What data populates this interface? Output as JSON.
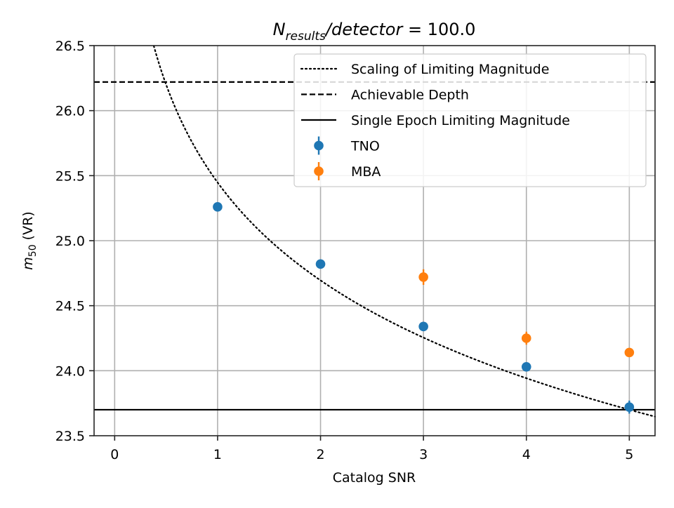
{
  "chart_data": {
    "type": "scatter",
    "title": {
      "symbol": "N",
      "subscript": "results",
      "rest": "/detector",
      "eq": " = 100.0"
    },
    "xlabel": "Catalog SNR",
    "ylabel": {
      "symbol": "m",
      "subscript": "50",
      "rest": " (VR)"
    },
    "xlim": [
      -0.2,
      5.25
    ],
    "ylim": [
      23.5,
      26.5
    ],
    "x_ticks": [
      0,
      1,
      2,
      3,
      4,
      5
    ],
    "x_tick_labels": [
      "0",
      "1",
      "2",
      "3",
      "4",
      "5"
    ],
    "y_ticks": [
      23.5,
      24.0,
      24.5,
      25.0,
      25.5,
      26.0,
      26.5
    ],
    "y_tick_labels": [
      "23.5",
      "24.0",
      "24.5",
      "25.0",
      "25.5",
      "26.0",
      "26.5"
    ],
    "grid": true,
    "legend_position": "top-right",
    "lines": [
      {
        "name": "Scaling of Limiting Magnitude",
        "style": "dotted",
        "color": "#000000",
        "formula": "23.70 + 2.5*log10(5/x)",
        "x_range": [
          0.38,
          5.25
        ]
      },
      {
        "name": "Achievable Depth",
        "style": "dashed",
        "color": "#000000",
        "y": 26.22
      },
      {
        "name": "Single Epoch Limiting Magnitude",
        "style": "solid",
        "color": "#000000",
        "y": 23.7
      }
    ],
    "series": [
      {
        "name": "TNO",
        "color": "#1f77b4",
        "x": [
          1,
          2,
          3,
          4,
          5
        ],
        "y": [
          25.26,
          24.82,
          24.34,
          24.03,
          23.72
        ],
        "yerr": [
          0.02,
          0.02,
          0.02,
          0.02,
          0.05
        ]
      },
      {
        "name": "MBA",
        "color": "#ff7f0e",
        "x": [
          3,
          4,
          5
        ],
        "y": [
          24.72,
          24.25,
          24.14
        ],
        "yerr": [
          0.06,
          0.05,
          0.02
        ]
      }
    ]
  }
}
